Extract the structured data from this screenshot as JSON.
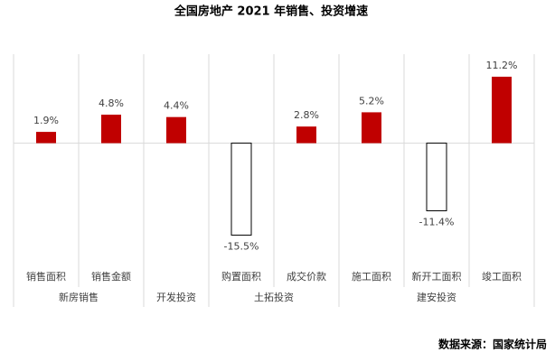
{
  "chart_data": {
    "type": "bar",
    "title": "全国房地产 2021 年销售、投资增速",
    "groups": [
      {
        "name": "新房销售",
        "categories": [
          "销售面积",
          "销售金额"
        ],
        "values": [
          1.9,
          4.8
        ],
        "value_labels": [
          "1.9%",
          "4.8%"
        ]
      },
      {
        "name": "开发投资",
        "categories": [
          null
        ],
        "values": [
          4.4
        ],
        "value_labels": [
          "4.4%"
        ]
      },
      {
        "name": "土拓投资",
        "categories": [
          "购置面积",
          "成交价款"
        ],
        "values": [
          -15.5,
          2.8
        ],
        "value_labels": [
          "-15.5%",
          "2.8%"
        ]
      },
      {
        "name": "建安投资",
        "categories": [
          "施工面积",
          "新开工面积",
          "竣工面积"
        ],
        "values": [
          5.2,
          -11.4,
          11.2
        ],
        "value_labels": [
          "5.2%",
          "-11.4%",
          "11.2%"
        ]
      }
    ],
    "color": "#c00000",
    "negative_color": "#ffffff",
    "ylim": [
      -20,
      15
    ],
    "source": "数据来源：国家统计局"
  }
}
